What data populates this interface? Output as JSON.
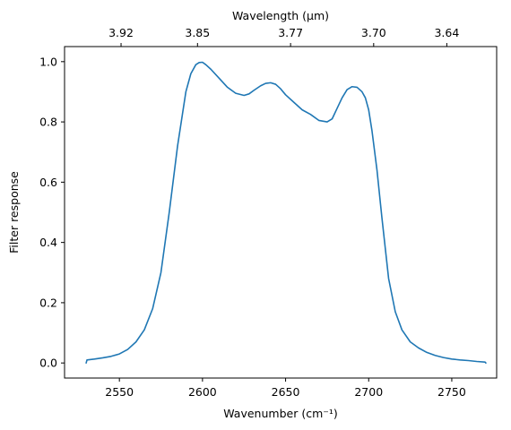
{
  "chart_data": {
    "type": "line",
    "xlabel": "Wavenumber (cm⁻¹)",
    "ylabel": "Filter response",
    "top_axis_label": "Wavelength (μm)",
    "xlim": [
      2517,
      2777
    ],
    "ylim": [
      -0.05,
      1.05
    ],
    "x_ticks": [
      2550,
      2600,
      2650,
      2700,
      2750
    ],
    "y_ticks": [
      0.0,
      0.2,
      0.4,
      0.6,
      0.8,
      1.0
    ],
    "y_tick_labels": [
      "0.0",
      "0.2",
      "0.4",
      "0.6",
      "0.8",
      "1.0"
    ],
    "top_axis_ticks": [
      {
        "label": "3.92",
        "wavenumber": 2551
      },
      {
        "label": "3.85",
        "wavenumber": 2597
      },
      {
        "label": "3.77",
        "wavenumber": 2653
      },
      {
        "label": "3.70",
        "wavenumber": 2703
      },
      {
        "label": "3.64",
        "wavenumber": 2747
      }
    ],
    "grid": false,
    "series": [
      {
        "color": "#1f77b4",
        "x": [
          2530,
          2530.5,
          2535,
          2540,
          2545,
          2550,
          2555,
          2560,
          2565,
          2570,
          2575,
          2580,
          2585,
          2590,
          2593,
          2596,
          2598,
          2600,
          2602,
          2605,
          2610,
          2615,
          2620,
          2625,
          2628,
          2631,
          2635,
          2638,
          2641,
          2644,
          2647,
          2650,
          2655,
          2660,
          2665,
          2670,
          2675,
          2678,
          2681,
          2684,
          2687,
          2690,
          2693,
          2696,
          2698,
          2700,
          2702,
          2705,
          2708,
          2712,
          2716,
          2720,
          2725,
          2730,
          2735,
          2740,
          2745,
          2750,
          2755,
          2760,
          2765,
          2770,
          2770.5
        ],
        "y": [
          0.0,
          0.01,
          0.013,
          0.017,
          0.022,
          0.03,
          0.045,
          0.07,
          0.11,
          0.18,
          0.3,
          0.5,
          0.72,
          0.9,
          0.96,
          0.99,
          0.997,
          0.998,
          0.99,
          0.975,
          0.945,
          0.915,
          0.895,
          0.888,
          0.893,
          0.905,
          0.92,
          0.928,
          0.93,
          0.925,
          0.91,
          0.89,
          0.865,
          0.84,
          0.825,
          0.805,
          0.8,
          0.81,
          0.845,
          0.88,
          0.907,
          0.917,
          0.915,
          0.9,
          0.88,
          0.84,
          0.77,
          0.64,
          0.48,
          0.28,
          0.17,
          0.11,
          0.07,
          0.05,
          0.035,
          0.025,
          0.018,
          0.013,
          0.01,
          0.008,
          0.005,
          0.003,
          0.0
        ]
      }
    ]
  }
}
